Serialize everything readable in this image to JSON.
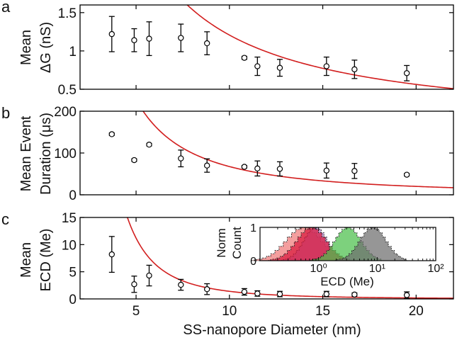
{
  "chart_data": [
    {
      "panel": "a",
      "type": "scatter",
      "ylabel": [
        "Mean",
        "ΔG (nS)"
      ],
      "xlim": [
        2,
        22
      ],
      "ylim": [
        0.5,
        1.6
      ],
      "yticks": [
        0.5,
        1,
        1.5
      ],
      "yticklabels": [
        "0.5",
        "1",
        "1.5"
      ],
      "points": [
        {
          "x": 3.7,
          "y": 1.22,
          "err": 0.23
        },
        {
          "x": 4.9,
          "y": 1.14,
          "err": 0.15
        },
        {
          "x": 5.7,
          "y": 1.16,
          "err": 0.22
        },
        {
          "x": 7.4,
          "y": 1.17,
          "err": 0.18
        },
        {
          "x": 8.8,
          "y": 1.1,
          "err": 0.15
        },
        {
          "x": 10.8,
          "y": 0.91,
          "err": 0.02
        },
        {
          "x": 11.5,
          "y": 0.8,
          "err": 0.12
        },
        {
          "x": 12.7,
          "y": 0.78,
          "err": 0.11
        },
        {
          "x": 15.2,
          "y": 0.8,
          "err": 0.12
        },
        {
          "x": 16.7,
          "y": 0.76,
          "err": 0.12
        },
        {
          "x": 19.5,
          "y": 0.71,
          "err": 0.1
        }
      ],
      "fit": {
        "a": 15.2,
        "p": 1.1,
        "color": "#d21e1e"
      }
    },
    {
      "panel": "b",
      "type": "scatter",
      "ylabel": [
        "Mean Event",
        "Duration (μs)"
      ],
      "xlim": [
        2,
        22
      ],
      "ylim": [
        0,
        200
      ],
      "yticks": [
        0,
        100,
        200
      ],
      "yticklabels": [
        "0",
        "100",
        "200"
      ],
      "points": [
        {
          "x": 3.7,
          "y": 145,
          "err": 3
        },
        {
          "x": 4.9,
          "y": 83,
          "err": 3
        },
        {
          "x": 5.7,
          "y": 120,
          "err": 3
        },
        {
          "x": 7.4,
          "y": 87,
          "err": 20
        },
        {
          "x": 8.8,
          "y": 70,
          "err": 16
        },
        {
          "x": 10.8,
          "y": 67,
          "err": 3
        },
        {
          "x": 11.5,
          "y": 63,
          "err": 18
        },
        {
          "x": 12.7,
          "y": 62,
          "err": 17
        },
        {
          "x": 15.2,
          "y": 58,
          "err": 18
        },
        {
          "x": 16.7,
          "y": 57,
          "err": 18
        },
        {
          "x": 19.5,
          "y": 48,
          "err": 3
        }
      ],
      "fit": {
        "a": 3800,
        "p": 1.75,
        "color": "#d21e1e"
      }
    },
    {
      "panel": "c",
      "type": "scatter",
      "ylabel": [
        "Mean",
        "ECD (Me)"
      ],
      "xlabel": "SS-nanopore Diameter (nm)",
      "xlim": [
        2,
        22
      ],
      "ylim": [
        0,
        15
      ],
      "yticks": [
        0,
        5,
        10,
        15
      ],
      "yticklabels": [
        "0",
        "5",
        "10",
        "15"
      ],
      "xticks": [
        5,
        10,
        15,
        20
      ],
      "xticklabels": [
        "5",
        "10",
        "15",
        "20"
      ],
      "points": [
        {
          "x": 3.7,
          "y": 8.2,
          "err": 3.3
        },
        {
          "x": 4.9,
          "y": 2.7,
          "err": 1.5
        },
        {
          "x": 5.7,
          "y": 4.3,
          "err": 1.9
        },
        {
          "x": 7.4,
          "y": 2.6,
          "err": 1.0
        },
        {
          "x": 8.8,
          "y": 1.8,
          "err": 1.0
        },
        {
          "x": 10.8,
          "y": 1.3,
          "err": 0.6
        },
        {
          "x": 11.5,
          "y": 1.0,
          "err": 0.5
        },
        {
          "x": 12.7,
          "y": 0.9,
          "err": 0.5
        },
        {
          "x": 15.2,
          "y": 0.9,
          "err": 0.5
        },
        {
          "x": 16.7,
          "y": 0.8,
          "err": 0.3
        },
        {
          "x": 19.5,
          "y": 0.7,
          "err": 0.6
        }
      ],
      "fit": {
        "a": 1400,
        "p": 3.0,
        "color": "#d21e1e"
      },
      "inset": {
        "type": "area",
        "ylabel": [
          "Norm",
          "Count"
        ],
        "xlabel": "ECD (Me)",
        "xscale": "log",
        "xlim_log10": [
          -1,
          2
        ],
        "ylim": [
          0,
          1
        ],
        "yticklabels": [
          "0",
          "1"
        ],
        "xticklabels": [
          "10⁰",
          "10¹",
          "10²"
        ],
        "histograms": [
          {
            "name": "salmon",
            "center_log10": -0.25,
            "width": 0.3,
            "color": "#f07878"
          },
          {
            "name": "purple",
            "center_log10": -0.05,
            "width": 0.2,
            "color": "#b27fc8"
          },
          {
            "name": "crimson",
            "center_log10": -0.12,
            "width": 0.25,
            "color": "#d8183c"
          },
          {
            "name": "green",
            "center_log10": 0.5,
            "width": 0.22,
            "color": "#4bbf4b"
          },
          {
            "name": "gray",
            "center_log10": 0.93,
            "width": 0.22,
            "color": "#6e6e6e"
          }
        ]
      }
    }
  ],
  "panel_labels": {
    "a": "a",
    "b": "b",
    "c": "c"
  }
}
